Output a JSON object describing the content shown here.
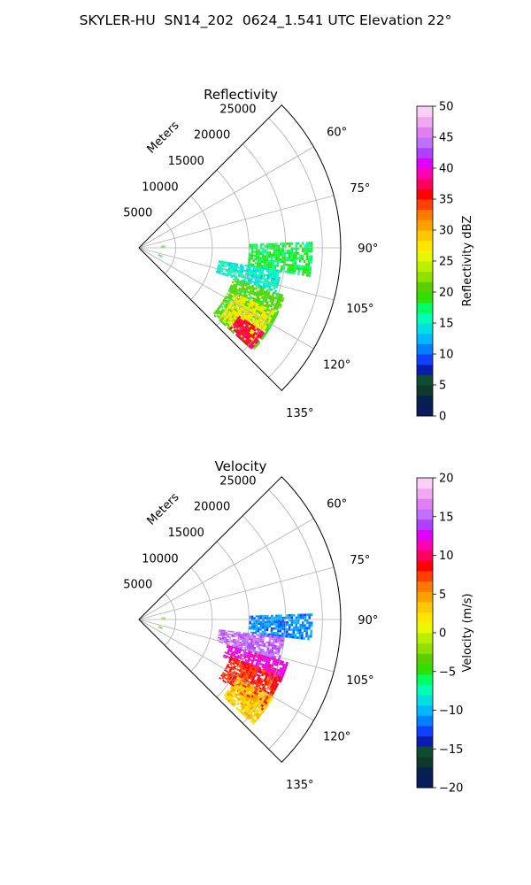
{
  "title": "SKYLER-HU  SN14_202  0624_1.541 UTC Elevation 22°",
  "chart_data": [
    {
      "type": "heatmap",
      "panel_title": "Reflectivity",
      "radial_axis_label": "Meters",
      "radial_ticks": [
        5000,
        10000,
        15000,
        20000,
        25000
      ],
      "radial_tick_labels": [
        "5000",
        "10000",
        "15000",
        "20000",
        "25000"
      ],
      "azimuth_ticks": [
        60,
        75,
        90,
        105,
        120,
        135
      ],
      "azimuth_tick_labels": [
        "60°",
        "75°",
        "90°",
        "105°",
        "120°",
        "135°"
      ],
      "azimuth_range": [
        45,
        135
      ],
      "radial_range": [
        0,
        27500
      ],
      "grid": true,
      "colorbar": {
        "label": "Reflectivity dBZ",
        "range": [
          0,
          50
        ],
        "ticks": [
          0,
          5,
          10,
          15,
          20,
          25,
          30,
          35,
          40,
          45,
          50
        ],
        "tick_labels": [
          "0",
          "5",
          "10",
          "15",
          "20",
          "25",
          "30",
          "35",
          "40",
          "45",
          "50"
        ],
        "colors": [
          "#0b1a5c",
          "#08204e",
          "#0d3a2a",
          "#0f4d30",
          "#0a1cb0",
          "#1040ff",
          "#0080ff",
          "#00b8ff",
          "#00e0e0",
          "#00ffb0",
          "#00ff60",
          "#30e000",
          "#5ad000",
          "#90e000",
          "#b8f000",
          "#e8f800",
          "#ffe400",
          "#ffc800",
          "#ffa000",
          "#ff7800",
          "#ff4000",
          "#ff0000",
          "#ff0060",
          "#ff00b0",
          "#e000ff",
          "#b040ff",
          "#c070ff",
          "#e080f0",
          "#f0a8f0",
          "#f8d0f8"
        ]
      },
      "echo_regions": [
        {
          "azimuth": [
            88,
            99
          ],
          "range": [
            15000,
            23500
          ],
          "value": 18
        },
        {
          "azimuth": [
            99,
            108
          ],
          "range": [
            11000,
            19500
          ],
          "value": 15
        },
        {
          "azimuth": [
            108,
            132
          ],
          "range": [
            13500,
            21000
          ],
          "value": 20
        },
        {
          "azimuth": [
            115,
            131
          ],
          "range": [
            14500,
            20500
          ],
          "value": 27
        },
        {
          "azimuth": [
            124,
            132
          ],
          "range": [
            16500,
            20500
          ],
          "value": 37
        },
        {
          "azimuth": [
            85,
            90
          ],
          "range": [
            3000,
            3500
          ],
          "value": 20
        },
        {
          "azimuth": [
            108,
            112
          ],
          "range": [
            2800,
            3400
          ],
          "value": 18
        }
      ]
    },
    {
      "type": "heatmap",
      "panel_title": "Velocity",
      "radial_axis_label": "Meters",
      "radial_ticks": [
        5000,
        10000,
        15000,
        20000,
        25000
      ],
      "radial_tick_labels": [
        "5000",
        "10000",
        "15000",
        "20000",
        "25000"
      ],
      "azimuth_ticks": [
        60,
        75,
        90,
        105,
        120,
        135
      ],
      "azimuth_tick_labels": [
        "60°",
        "75°",
        "90°",
        "105°",
        "120°",
        "135°"
      ],
      "azimuth_range": [
        45,
        135
      ],
      "radial_range": [
        0,
        27500
      ],
      "grid": true,
      "colorbar": {
        "label": "Velocity (m/s)",
        "range": [
          -20,
          20
        ],
        "ticks": [
          -20,
          -15,
          -10,
          -5,
          0,
          5,
          10,
          15,
          20
        ],
        "tick_labels": [
          "−20",
          "−15",
          "−10",
          "−5",
          "0",
          "5",
          "10",
          "15",
          "20"
        ],
        "colors": [
          "#0b1a5c",
          "#08204e",
          "#0d3a2a",
          "#0f4d30",
          "#0a1cb0",
          "#1040ff",
          "#0080ff",
          "#00b8ff",
          "#00e0e0",
          "#00ffb0",
          "#00ff60",
          "#30e000",
          "#5ad000",
          "#90e000",
          "#b8f000",
          "#e8f800",
          "#ffe400",
          "#ffc800",
          "#ffa000",
          "#ff7800",
          "#ff4000",
          "#ff0000",
          "#ff0060",
          "#ff00b0",
          "#e000ff",
          "#b040ff",
          "#c070ff",
          "#e080f0",
          "#f0a8f0",
          "#f8d0f8"
        ]
      },
      "echo_regions": [
        {
          "azimuth": [
            88,
            97
          ],
          "range": [
            15000,
            23500
          ],
          "value": -11
        },
        {
          "azimuth": [
            97,
            106
          ],
          "range": [
            11000,
            20000
          ],
          "value": 15
        },
        {
          "azimuth": [
            106,
            114
          ],
          "range": [
            12500,
            21000
          ],
          "value": 12
        },
        {
          "azimuth": [
            112,
            126
          ],
          "range": [
            13500,
            21000
          ],
          "value": 8
        },
        {
          "azimuth": [
            120,
            132
          ],
          "range": [
            15500,
            21000
          ],
          "value": 3
        },
        {
          "azimuth": [
            85,
            90
          ],
          "range": [
            3000,
            3500
          ],
          "value": -3
        },
        {
          "azimuth": [
            108,
            112
          ],
          "range": [
            2800,
            3400
          ],
          "value": -3
        }
      ]
    }
  ]
}
